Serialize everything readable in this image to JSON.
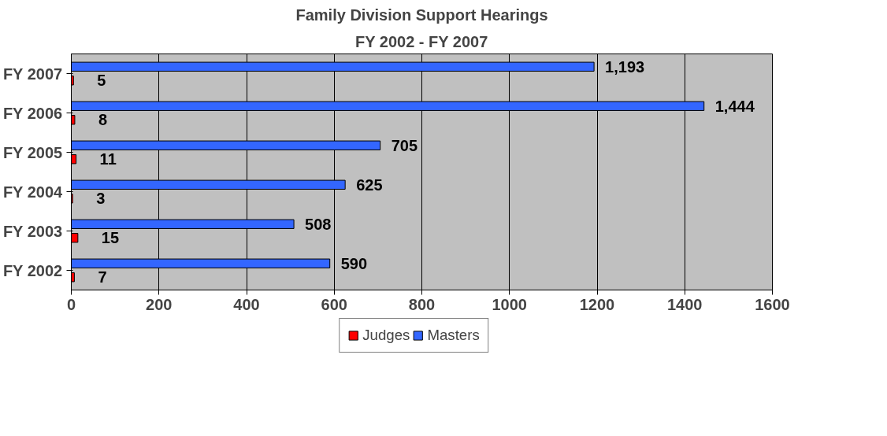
{
  "chart_data": {
    "type": "bar",
    "orientation": "horizontal",
    "title": "Family Division Support Hearings",
    "subtitle": "FY 2002 - FY 2007",
    "categories": [
      "FY 2007",
      "FY 2006",
      "FY 2005",
      "FY 2004",
      "FY 2003",
      "FY 2002"
    ],
    "series": [
      {
        "name": "Judges",
        "color": "#ff0000",
        "values": [
          5,
          8,
          11,
          3,
          15,
          7
        ],
        "value_labels": [
          "5",
          "8",
          "11",
          "3",
          "15",
          "7"
        ]
      },
      {
        "name": "Masters",
        "color": "#3366ff",
        "values": [
          1193,
          1444,
          705,
          625,
          508,
          590
        ],
        "value_labels": [
          "1,193",
          "1,444",
          "705",
          "625",
          "508",
          "590"
        ]
      }
    ],
    "xlim": [
      0,
      1600
    ],
    "xticks": [
      0,
      200,
      400,
      600,
      800,
      1000,
      1200,
      1400,
      1600
    ],
    "grid": "x",
    "legend": "bottom"
  }
}
